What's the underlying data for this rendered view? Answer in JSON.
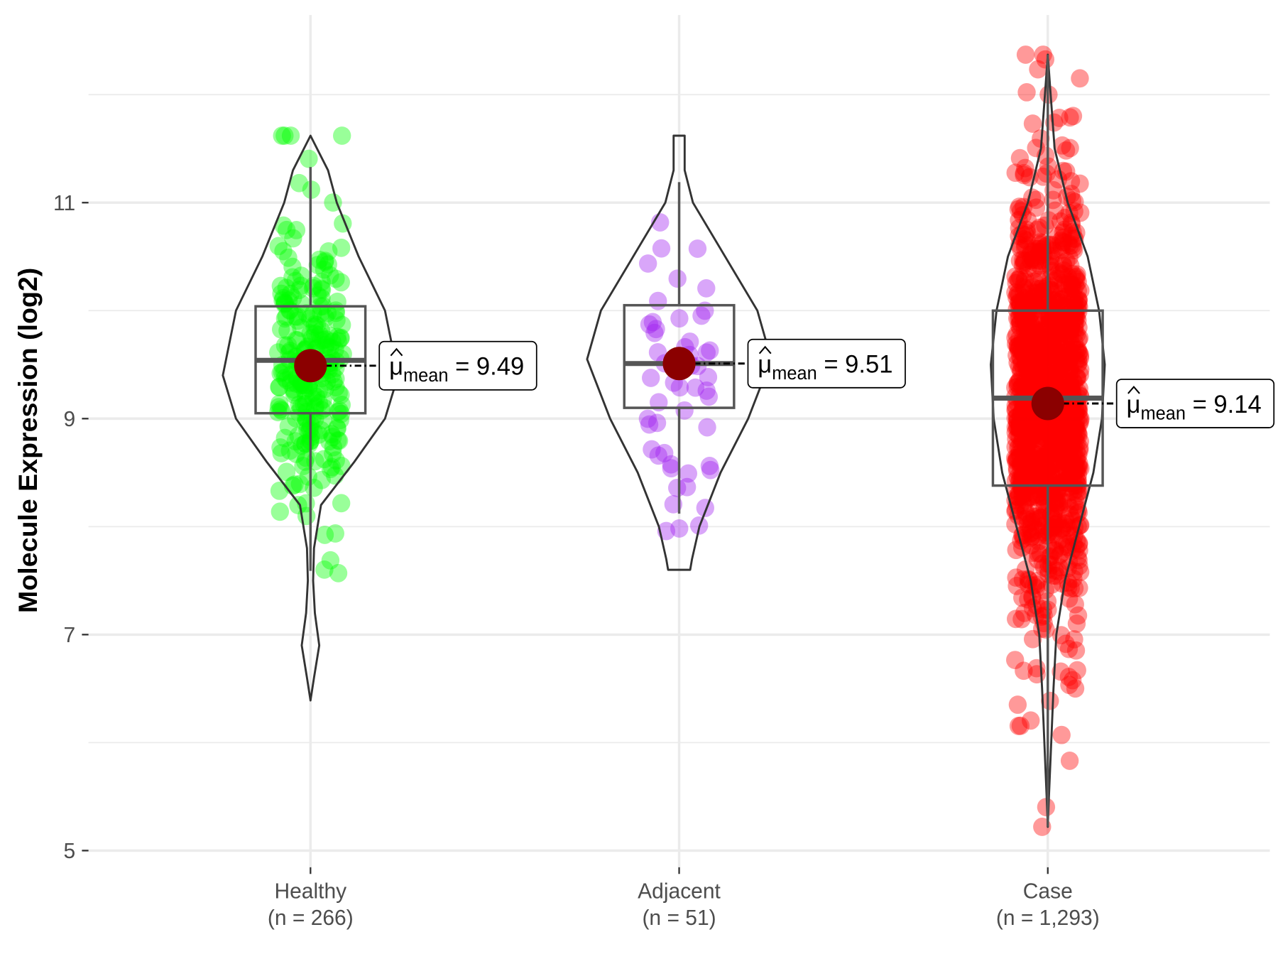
{
  "chart_data": {
    "type": "violin",
    "title": "",
    "xlabel": "",
    "ylabel": "Molecule Expression (log2)",
    "ylim": [
      4.85,
      12.8
    ],
    "yticks": [
      5,
      7,
      9,
      11
    ],
    "ytick_labels": [
      "5",
      "7",
      "9",
      "11"
    ],
    "minor_grid": [
      6,
      8,
      10,
      12
    ],
    "grid": true,
    "legend": "none",
    "groups": [
      {
        "name": "Healthy",
        "n_label": "(n = 266)",
        "n": 266,
        "color": "#00ff00",
        "q1": 9.05,
        "median": 9.54,
        "q3": 10.04,
        "whisker_low": 7.59,
        "whisker_high": 11.33,
        "mean": 9.49,
        "mean_label": "9.49",
        "sd": 0.8,
        "min": 6.39,
        "max": 11.62,
        "max_density": 1.0,
        "density": [
          [
            6.39,
            0
          ],
          [
            6.6,
            0.04
          ],
          [
            6.9,
            0.1
          ],
          [
            7.2,
            0.05
          ],
          [
            7.5,
            0.03
          ],
          [
            7.8,
            0.04
          ],
          [
            8.2,
            0.12
          ],
          [
            8.6,
            0.5
          ],
          [
            9.0,
            0.85
          ],
          [
            9.4,
            1.0
          ],
          [
            10.0,
            0.85
          ],
          [
            10.5,
            0.55
          ],
          [
            11.0,
            0.3
          ],
          [
            11.3,
            0.2
          ],
          [
            11.62,
            0
          ]
        ]
      },
      {
        "name": "Adjacent",
        "n_label": "(n = 51)",
        "n": 51,
        "color": "#a020f0",
        "q1": 9.1,
        "median": 9.51,
        "q3": 10.05,
        "whisker_low": 8.12,
        "whisker_high": 11.19,
        "mean": 9.51,
        "mean_label": "9.51",
        "sd": 0.8,
        "min": 7.6,
        "max": 11.62,
        "max_density": 1.05,
        "density": [
          [
            7.6,
            0.12
          ],
          [
            7.7,
            0.14
          ],
          [
            8.0,
            0.22
          ],
          [
            8.5,
            0.45
          ],
          [
            9.0,
            0.75
          ],
          [
            9.55,
            1.0
          ],
          [
            10.0,
            0.85
          ],
          [
            10.5,
            0.5
          ],
          [
            11.0,
            0.15
          ],
          [
            11.3,
            0.06
          ],
          [
            11.62,
            0.06
          ]
        ]
      },
      {
        "name": "Case",
        "n_label": "(n = 1,293)",
        "n": 1293,
        "color": "#ff0000",
        "q1": 8.38,
        "median": 9.19,
        "q3": 10.0,
        "whisker_low": 5.22,
        "whisker_high": 12.37,
        "mean": 9.14,
        "mean_label": "9.14",
        "sd": 1.1,
        "min": 5.22,
        "max": 12.37,
        "max_density": 0.65,
        "density": [
          [
            5.22,
            0
          ],
          [
            5.5,
            0.02
          ],
          [
            6.0,
            0.06
          ],
          [
            6.5,
            0.1
          ],
          [
            7.0,
            0.15
          ],
          [
            7.5,
            0.3
          ],
          [
            8.0,
            0.55
          ],
          [
            8.5,
            0.8
          ],
          [
            9.0,
            0.95
          ],
          [
            9.5,
            1.0
          ],
          [
            10.0,
            0.9
          ],
          [
            10.5,
            0.7
          ],
          [
            11.0,
            0.35
          ],
          [
            11.5,
            0.12
          ],
          [
            12.0,
            0.05
          ],
          [
            12.37,
            0
          ]
        ]
      }
    ],
    "mean_symbol": "μ",
    "mean_subscript": "mean",
    "mean_color": "#8b0000"
  }
}
